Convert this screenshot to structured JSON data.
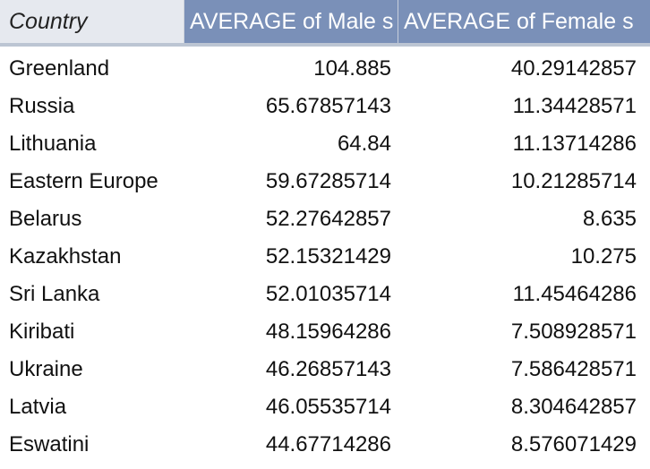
{
  "table": {
    "headers": {
      "country": "Country",
      "male": "AVERAGE of Male s",
      "female": "AVERAGE of Female s"
    },
    "rows": [
      {
        "country": "Greenland",
        "male": "104.885",
        "female": "40.29142857"
      },
      {
        "country": "Russia",
        "male": "65.67857143",
        "female": "11.34428571"
      },
      {
        "country": "Lithuania",
        "male": "64.84",
        "female": "11.13714286"
      },
      {
        "country": "Eastern Europe",
        "male": "59.67285714",
        "female": "10.21285714"
      },
      {
        "country": "Belarus",
        "male": "52.27642857",
        "female": "8.635"
      },
      {
        "country": "Kazakhstan",
        "male": "52.15321429",
        "female": "10.275"
      },
      {
        "country": "Sri Lanka",
        "male": "52.01035714",
        "female": "11.45464286"
      },
      {
        "country": "Kiribati",
        "male": "48.15964286",
        "female": "7.508928571"
      },
      {
        "country": "Ukraine",
        "male": "46.26857143",
        "female": "7.586428571"
      },
      {
        "country": "Latvia",
        "male": "46.05535714",
        "female": "8.304642857"
      },
      {
        "country": "Eswatini",
        "male": "44.67714286",
        "female": "8.576071429"
      }
    ]
  },
  "colors": {
    "header_country_bg": "#e6e9ef",
    "header_metric_bg": "#7a90b8",
    "header_separator": "#bcc5d3"
  }
}
